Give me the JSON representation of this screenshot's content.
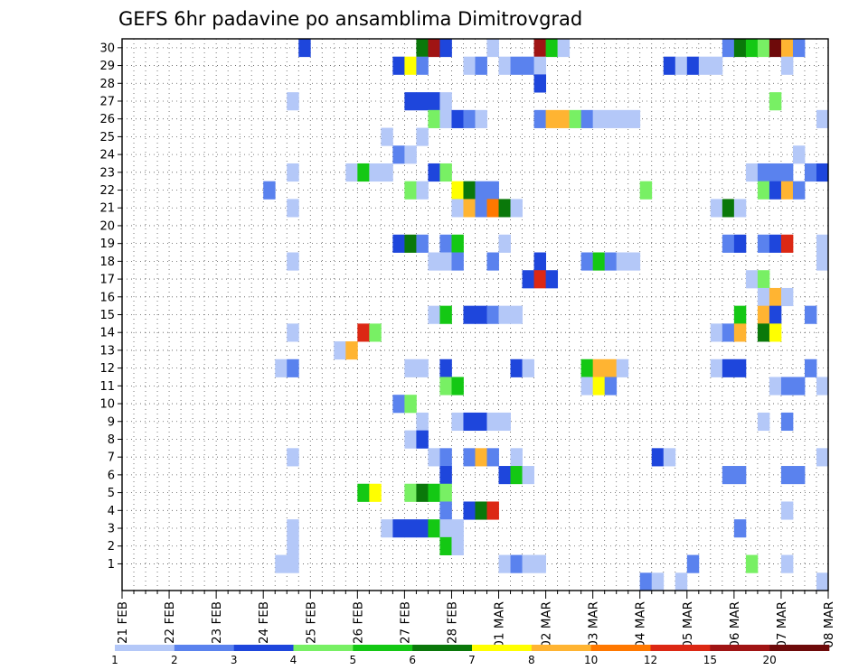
{
  "chart_data": {
    "type": "heatmap",
    "title": "GEFS 6hr padavine po ansamblima Dimitrovgrad",
    "xlabel": "",
    "ylabel": "",
    "ensemble_members": [
      1,
      2,
      3,
      4,
      5,
      6,
      7,
      8,
      9,
      10,
      11,
      12,
      13,
      14,
      15,
      16,
      17,
      18,
      19,
      20,
      21,
      22,
      23,
      24,
      25,
      26,
      27,
      28,
      29,
      30
    ],
    "x_tick_labels": [
      "21 FEB",
      "22 FEB",
      "23 FEB",
      "24 FEB",
      "25 FEB",
      "26 FEB",
      "27 FEB",
      "28 FEB",
      "01 MAR",
      "02 MAR",
      "03 MAR",
      "04 MAR",
      "05 MAR",
      "06 MAR",
      "07 MAR",
      "08 MAR"
    ],
    "steps_per_day": 4,
    "legend": {
      "labels": [
        "1",
        "2",
        "3",
        "4",
        "5",
        "6",
        "7",
        "8",
        "10",
        "12",
        "15",
        "20"
      ],
      "colors": [
        "#b4c8f8",
        "#5a82ee",
        "#1e46dc",
        "#78f064",
        "#14c814",
        "#0a780a",
        "#ffff00",
        "#ffb432",
        "#ff7800",
        "#dc2814",
        "#a01414",
        "#6e0a0a"
      ]
    },
    "cells": [
      {
        "member": 30,
        "step": 15,
        "level": 3
      },
      {
        "member": 30,
        "step": 25,
        "level": 6
      },
      {
        "member": 30,
        "step": 26,
        "level": 11
      },
      {
        "member": 30,
        "step": 27,
        "level": 3
      },
      {
        "member": 30,
        "step": 31,
        "level": 1
      },
      {
        "member": 30,
        "step": 35,
        "level": 11
      },
      {
        "member": 30,
        "step": 36,
        "level": 5
      },
      {
        "member": 30,
        "step": 37,
        "level": 1
      },
      {
        "member": 30,
        "step": 51,
        "level": 2
      },
      {
        "member": 30,
        "step": 52,
        "level": 6
      },
      {
        "member": 30,
        "step": 53,
        "level": 5
      },
      {
        "member": 30,
        "step": 54,
        "level": 4
      },
      {
        "member": 30,
        "step": 55,
        "level": 12
      },
      {
        "member": 30,
        "step": 56,
        "level": 8
      },
      {
        "member": 30,
        "step": 57,
        "level": 2
      },
      {
        "member": 29,
        "step": 23,
        "level": 3
      },
      {
        "member": 29,
        "step": 24,
        "level": 7
      },
      {
        "member": 29,
        "step": 25,
        "level": 2
      },
      {
        "member": 29,
        "step": 29,
        "level": 1
      },
      {
        "member": 29,
        "step": 30,
        "level": 2
      },
      {
        "member": 29,
        "step": 32,
        "level": 1
      },
      {
        "member": 29,
        "step": 33,
        "level": 2
      },
      {
        "member": 29,
        "step": 34,
        "level": 2
      },
      {
        "member": 29,
        "step": 35,
        "level": 1
      },
      {
        "member": 29,
        "step": 46,
        "level": 3
      },
      {
        "member": 29,
        "step": 47,
        "level": 1
      },
      {
        "member": 29,
        "step": 48,
        "level": 3
      },
      {
        "member": 29,
        "step": 49,
        "level": 1
      },
      {
        "member": 29,
        "step": 50,
        "level": 1
      },
      {
        "member": 29,
        "step": 56,
        "level": 1
      },
      {
        "member": 28,
        "step": 35,
        "level": 3
      },
      {
        "member": 27,
        "step": 14,
        "level": 1
      },
      {
        "member": 27,
        "step": 24,
        "level": 3
      },
      {
        "member": 27,
        "step": 25,
        "level": 3
      },
      {
        "member": 27,
        "step": 26,
        "level": 3
      },
      {
        "member": 27,
        "step": 27,
        "level": 1
      },
      {
        "member": 27,
        "step": 55,
        "level": 4
      },
      {
        "member": 26,
        "step": 26,
        "level": 4
      },
      {
        "member": 26,
        "step": 27,
        "level": 1
      },
      {
        "member": 26,
        "step": 28,
        "level": 3
      },
      {
        "member": 26,
        "step": 29,
        "level": 2
      },
      {
        "member": 26,
        "step": 30,
        "level": 1
      },
      {
        "member": 26,
        "step": 35,
        "level": 2
      },
      {
        "member": 26,
        "step": 36,
        "level": 8
      },
      {
        "member": 26,
        "step": 37,
        "level": 8
      },
      {
        "member": 26,
        "step": 38,
        "level": 4
      },
      {
        "member": 26,
        "step": 39,
        "level": 2
      },
      {
        "member": 26,
        "step": 40,
        "level": 1
      },
      {
        "member": 26,
        "step": 41,
        "level": 1
      },
      {
        "member": 26,
        "step": 42,
        "level": 1
      },
      {
        "member": 26,
        "step": 43,
        "level": 1
      },
      {
        "member": 26,
        "step": 59,
        "level": 1
      },
      {
        "member": 25,
        "step": 22,
        "level": 1
      },
      {
        "member": 25,
        "step": 25,
        "level": 1
      },
      {
        "member": 24,
        "step": 23,
        "level": 2
      },
      {
        "member": 24,
        "step": 24,
        "level": 1
      },
      {
        "member": 24,
        "step": 57,
        "level": 1
      },
      {
        "member": 23,
        "step": 14,
        "level": 1
      },
      {
        "member": 23,
        "step": 19,
        "level": 1
      },
      {
        "member": 23,
        "step": 20,
        "level": 5
      },
      {
        "member": 23,
        "step": 21,
        "level": 1
      },
      {
        "member": 23,
        "step": 22,
        "level": 1
      },
      {
        "member": 23,
        "step": 26,
        "level": 3
      },
      {
        "member": 23,
        "step": 27,
        "level": 4
      },
      {
        "member": 23,
        "step": 53,
        "level": 1
      },
      {
        "member": 23,
        "step": 54,
        "level": 2
      },
      {
        "member": 23,
        "step": 55,
        "level": 2
      },
      {
        "member": 23,
        "step": 56,
        "level": 2
      },
      {
        "member": 23,
        "step": 58,
        "level": 2
      },
      {
        "member": 23,
        "step": 59,
        "level": 3
      },
      {
        "member": 22,
        "step": 12,
        "level": 2
      },
      {
        "member": 22,
        "step": 24,
        "level": 4
      },
      {
        "member": 22,
        "step": 25,
        "level": 1
      },
      {
        "member": 22,
        "step": 28,
        "level": 7
      },
      {
        "member": 22,
        "step": 29,
        "level": 6
      },
      {
        "member": 22,
        "step": 30,
        "level": 2
      },
      {
        "member": 22,
        "step": 31,
        "level": 2
      },
      {
        "member": 22,
        "step": 44,
        "level": 4
      },
      {
        "member": 22,
        "step": 54,
        "level": 4
      },
      {
        "member": 22,
        "step": 55,
        "level": 3
      },
      {
        "member": 22,
        "step": 56,
        "level": 8
      },
      {
        "member": 22,
        "step": 57,
        "level": 2
      },
      {
        "member": 21,
        "step": 14,
        "level": 1
      },
      {
        "member": 21,
        "step": 28,
        "level": 1
      },
      {
        "member": 21,
        "step": 29,
        "level": 8
      },
      {
        "member": 21,
        "step": 30,
        "level": 2
      },
      {
        "member": 21,
        "step": 31,
        "level": 9
      },
      {
        "member": 21,
        "step": 32,
        "level": 6
      },
      {
        "member": 21,
        "step": 33,
        "level": 1
      },
      {
        "member": 21,
        "step": 50,
        "level": 1
      },
      {
        "member": 21,
        "step": 51,
        "level": 6
      },
      {
        "member": 21,
        "step": 52,
        "level": 1
      },
      {
        "member": 19,
        "step": 23,
        "level": 3
      },
      {
        "member": 19,
        "step": 24,
        "level": 6
      },
      {
        "member": 19,
        "step": 25,
        "level": 2
      },
      {
        "member": 19,
        "step": 27,
        "level": 2
      },
      {
        "member": 19,
        "step": 28,
        "level": 5
      },
      {
        "member": 19,
        "step": 32,
        "level": 1
      },
      {
        "member": 19,
        "step": 51,
        "level": 2
      },
      {
        "member": 19,
        "step": 52,
        "level": 3
      },
      {
        "member": 19,
        "step": 54,
        "level": 2
      },
      {
        "member": 19,
        "step": 55,
        "level": 3
      },
      {
        "member": 19,
        "step": 56,
        "level": 10
      },
      {
        "member": 19,
        "step": 59,
        "level": 1
      },
      {
        "member": 18,
        "step": 14,
        "level": 1
      },
      {
        "member": 18,
        "step": 26,
        "level": 1
      },
      {
        "member": 18,
        "step": 27,
        "level": 1
      },
      {
        "member": 18,
        "step": 28,
        "level": 2
      },
      {
        "member": 18,
        "step": 31,
        "level": 2
      },
      {
        "member": 18,
        "step": 35,
        "level": 3
      },
      {
        "member": 18,
        "step": 39,
        "level": 2
      },
      {
        "member": 18,
        "step": 40,
        "level": 5
      },
      {
        "member": 18,
        "step": 41,
        "level": 2
      },
      {
        "member": 18,
        "step": 42,
        "level": 1
      },
      {
        "member": 18,
        "step": 43,
        "level": 1
      },
      {
        "member": 18,
        "step": 59,
        "level": 1
      },
      {
        "member": 17,
        "step": 34,
        "level": 3
      },
      {
        "member": 17,
        "step": 35,
        "level": 10
      },
      {
        "member": 17,
        "step": 36,
        "level": 3
      },
      {
        "member": 17,
        "step": 53,
        "level": 1
      },
      {
        "member": 17,
        "step": 54,
        "level": 4
      },
      {
        "member": 16,
        "step": 54,
        "level": 1
      },
      {
        "member": 16,
        "step": 55,
        "level": 8
      },
      {
        "member": 16,
        "step": 56,
        "level": 1
      },
      {
        "member": 15,
        "step": 26,
        "level": 1
      },
      {
        "member": 15,
        "step": 27,
        "level": 5
      },
      {
        "member": 15,
        "step": 29,
        "level": 3
      },
      {
        "member": 15,
        "step": 30,
        "level": 3
      },
      {
        "member": 15,
        "step": 31,
        "level": 2
      },
      {
        "member": 15,
        "step": 32,
        "level": 1
      },
      {
        "member": 15,
        "step": 33,
        "level": 1
      },
      {
        "member": 15,
        "step": 52,
        "level": 5
      },
      {
        "member": 15,
        "step": 54,
        "level": 8
      },
      {
        "member": 15,
        "step": 55,
        "level": 3
      },
      {
        "member": 15,
        "step": 58,
        "level": 2
      },
      {
        "member": 14,
        "step": 14,
        "level": 1
      },
      {
        "member": 14,
        "step": 20,
        "level": 10
      },
      {
        "member": 14,
        "step": 21,
        "level": 4
      },
      {
        "member": 14,
        "step": 50,
        "level": 1
      },
      {
        "member": 14,
        "step": 51,
        "level": 2
      },
      {
        "member": 14,
        "step": 52,
        "level": 8
      },
      {
        "member": 14,
        "step": 54,
        "level": 6
      },
      {
        "member": 14,
        "step": 55,
        "level": 7
      },
      {
        "member": 13,
        "step": 18,
        "level": 1
      },
      {
        "member": 13,
        "step": 19,
        "level": 8
      },
      {
        "member": 12,
        "step": 13,
        "level": 1
      },
      {
        "member": 12,
        "step": 14,
        "level": 2
      },
      {
        "member": 12,
        "step": 24,
        "level": 1
      },
      {
        "member": 12,
        "step": 25,
        "level": 1
      },
      {
        "member": 12,
        "step": 27,
        "level": 3
      },
      {
        "member": 12,
        "step": 33,
        "level": 3
      },
      {
        "member": 12,
        "step": 34,
        "level": 1
      },
      {
        "member": 12,
        "step": 39,
        "level": 5
      },
      {
        "member": 12,
        "step": 40,
        "level": 8
      },
      {
        "member": 12,
        "step": 41,
        "level": 8
      },
      {
        "member": 12,
        "step": 42,
        "level": 1
      },
      {
        "member": 12,
        "step": 50,
        "level": 1
      },
      {
        "member": 12,
        "step": 51,
        "level": 3
      },
      {
        "member": 12,
        "step": 52,
        "level": 3
      },
      {
        "member": 12,
        "step": 58,
        "level": 2
      },
      {
        "member": 11,
        "step": 27,
        "level": 4
      },
      {
        "member": 11,
        "step": 28,
        "level": 5
      },
      {
        "member": 11,
        "step": 39,
        "level": 1
      },
      {
        "member": 11,
        "step": 40,
        "level": 7
      },
      {
        "member": 11,
        "step": 41,
        "level": 2
      },
      {
        "member": 11,
        "step": 55,
        "level": 1
      },
      {
        "member": 11,
        "step": 56,
        "level": 2
      },
      {
        "member": 11,
        "step": 57,
        "level": 2
      },
      {
        "member": 11,
        "step": 59,
        "level": 1
      },
      {
        "member": 10,
        "step": 23,
        "level": 2
      },
      {
        "member": 10,
        "step": 24,
        "level": 4
      },
      {
        "member": 9,
        "step": 25,
        "level": 1
      },
      {
        "member": 9,
        "step": 28,
        "level": 1
      },
      {
        "member": 9,
        "step": 29,
        "level": 3
      },
      {
        "member": 9,
        "step": 30,
        "level": 3
      },
      {
        "member": 9,
        "step": 31,
        "level": 1
      },
      {
        "member": 9,
        "step": 32,
        "level": 1
      },
      {
        "member": 9,
        "step": 54,
        "level": 1
      },
      {
        "member": 9,
        "step": 56,
        "level": 2
      },
      {
        "member": 8,
        "step": 24,
        "level": 1
      },
      {
        "member": 8,
        "step": 25,
        "level": 3
      },
      {
        "member": 7,
        "step": 14,
        "level": 1
      },
      {
        "member": 7,
        "step": 26,
        "level": 1
      },
      {
        "member": 7,
        "step": 27,
        "level": 2
      },
      {
        "member": 7,
        "step": 29,
        "level": 2
      },
      {
        "member": 7,
        "step": 30,
        "level": 8
      },
      {
        "member": 7,
        "step": 31,
        "level": 2
      },
      {
        "member": 7,
        "step": 33,
        "level": 1
      },
      {
        "member": 7,
        "step": 45,
        "level": 3
      },
      {
        "member": 7,
        "step": 46,
        "level": 1
      },
      {
        "member": 7,
        "step": 59,
        "level": 1
      },
      {
        "member": 6,
        "step": 27,
        "level": 3
      },
      {
        "member": 6,
        "step": 32,
        "level": 3
      },
      {
        "member": 6,
        "step": 33,
        "level": 5
      },
      {
        "member": 6,
        "step": 34,
        "level": 1
      },
      {
        "member": 6,
        "step": 51,
        "level": 2
      },
      {
        "member": 6,
        "step": 52,
        "level": 2
      },
      {
        "member": 6,
        "step": 56,
        "level": 2
      },
      {
        "member": 6,
        "step": 57,
        "level": 2
      },
      {
        "member": 5,
        "step": 20,
        "level": 5
      },
      {
        "member": 5,
        "step": 21,
        "level": 7
      },
      {
        "member": 5,
        "step": 24,
        "level": 4
      },
      {
        "member": 5,
        "step": 25,
        "level": 6
      },
      {
        "member": 5,
        "step": 26,
        "level": 5
      },
      {
        "member": 5,
        "step": 27,
        "level": 4
      },
      {
        "member": 4,
        "step": 27,
        "level": 2
      },
      {
        "member": 4,
        "step": 29,
        "level": 3
      },
      {
        "member": 4,
        "step": 30,
        "level": 6
      },
      {
        "member": 4,
        "step": 31,
        "level": 10
      },
      {
        "member": 4,
        "step": 56,
        "level": 1
      },
      {
        "member": 3,
        "step": 14,
        "level": 1
      },
      {
        "member": 3,
        "step": 22,
        "level": 1
      },
      {
        "member": 3,
        "step": 23,
        "level": 3
      },
      {
        "member": 3,
        "step": 24,
        "level": 3
      },
      {
        "member": 3,
        "step": 25,
        "level": 3
      },
      {
        "member": 3,
        "step": 26,
        "level": 5
      },
      {
        "member": 3,
        "step": 27,
        "level": 1
      },
      {
        "member": 3,
        "step": 28,
        "level": 1
      },
      {
        "member": 3,
        "step": 52,
        "level": 2
      },
      {
        "member": 2,
        "step": 14,
        "level": 1
      },
      {
        "member": 2,
        "step": 27,
        "level": 5
      },
      {
        "member": 2,
        "step": 28,
        "level": 1
      },
      {
        "member": 1,
        "step": 13,
        "level": 1
      },
      {
        "member": 1,
        "step": 14,
        "level": 1
      },
      {
        "member": 1,
        "step": 32,
        "level": 1
      },
      {
        "member": 1,
        "step": 33,
        "level": 2
      },
      {
        "member": 1,
        "step": 34,
        "level": 1
      },
      {
        "member": 1,
        "step": 35,
        "level": 1
      },
      {
        "member": 1,
        "step": 48,
        "level": 2
      },
      {
        "member": 1,
        "step": 53,
        "level": 4
      },
      {
        "member": 1,
        "step": 56,
        "level": 1
      },
      {
        "member": 0,
        "step": 44,
        "level": 2
      },
      {
        "member": 0,
        "step": 45,
        "level": 1
      },
      {
        "member": 0,
        "step": 47,
        "level": 1
      },
      {
        "member": 0,
        "step": 59,
        "level": 1
      }
    ]
  }
}
